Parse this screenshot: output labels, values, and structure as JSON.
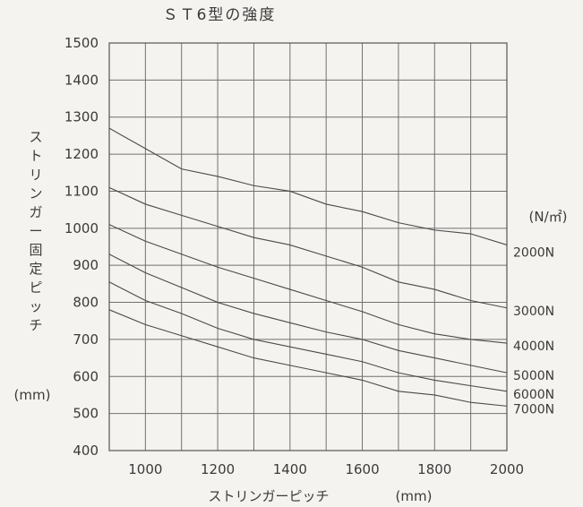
{
  "chart_data": {
    "type": "line",
    "title": "ＳＴ6型の強度",
    "xlabel": "ストリンガーピッチ",
    "xlabel_unit": "(mm)",
    "ylabel": "ストリンガー固定ピッチ",
    "ylabel_unit": "(mm)",
    "legend_unit": "(N/㎡)",
    "xlim": [
      900,
      2000
    ],
    "ylim": [
      400,
      1500
    ],
    "x_ticks": [
      1000,
      1200,
      1400,
      1600,
      1800,
      2000
    ],
    "y_ticks": [
      400,
      500,
      600,
      700,
      800,
      900,
      1000,
      1100,
      1200,
      1300,
      1400,
      1500
    ],
    "grid": true,
    "x": [
      900,
      1000,
      1100,
      1200,
      1300,
      1400,
      1500,
      1600,
      1700,
      1800,
      1900,
      2000
    ],
    "series": [
      {
        "name": "2000N",
        "values": [
          1270,
          1215,
          1160,
          1140,
          1115,
          1100,
          1065,
          1045,
          1015,
          995,
          985,
          955
        ]
      },
      {
        "name": "3000N",
        "values": [
          1110,
          1065,
          1035,
          1005,
          975,
          955,
          925,
          895,
          855,
          835,
          805,
          785
        ]
      },
      {
        "name": "4000N",
        "values": [
          1010,
          965,
          930,
          895,
          865,
          835,
          805,
          775,
          740,
          715,
          700,
          690
        ]
      },
      {
        "name": "5000N",
        "values": [
          930,
          880,
          840,
          800,
          770,
          745,
          720,
          700,
          670,
          650,
          630,
          610
        ]
      },
      {
        "name": "6000N",
        "values": [
          855,
          805,
          770,
          730,
          700,
          680,
          660,
          640,
          610,
          590,
          575,
          560
        ]
      },
      {
        "name": "7000N",
        "values": [
          780,
          740,
          710,
          680,
          650,
          630,
          610,
          590,
          560,
          550,
          530,
          520
        ]
      }
    ]
  }
}
